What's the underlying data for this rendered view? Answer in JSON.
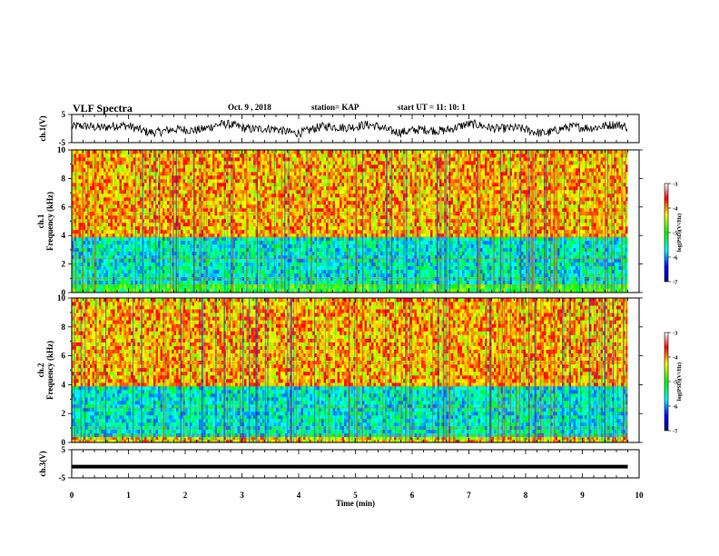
{
  "header": {
    "title": "VLF Spectra",
    "date": "Oct. 9 , 2018",
    "station": "station= KAP",
    "start": "start UT = 11: 10: 1"
  },
  "chart_data": [
    {
      "type": "line",
      "panel": "ch1-waveform",
      "ylabel": "ch.1(V)",
      "ylim": [
        -5,
        5
      ],
      "yticks": [
        "5",
        "-5"
      ],
      "xlim": [
        0,
        9.8
      ],
      "description_values": "noisy waveform fluctuating roughly between -4 and 4 V"
    },
    {
      "type": "heatmap",
      "panel": "ch1-spectrogram",
      "ylabel": "ch.1\nFrequency (kHz)",
      "ylabel_line1": "ch.1",
      "ylabel_line2": "Frequency (kHz)",
      "ylim": [
        0,
        10
      ],
      "yticks": [
        "0",
        "2",
        "4",
        "6",
        "8",
        "10"
      ],
      "xlim": [
        0,
        9.8
      ],
      "bands": [
        {
          "from": 0,
          "to": 0.6,
          "level": -5.0
        },
        {
          "from": 0.6,
          "to": 3.9,
          "level": -5.6
        },
        {
          "from": 3.9,
          "to": 10,
          "level": -4.1
        }
      ],
      "colorbar": {
        "label": "log(PSD)(V²/Hz)",
        "range": [
          -7,
          -3
        ],
        "ticks": [
          "-3",
          "-4",
          "-5",
          "-6",
          "-7"
        ]
      }
    },
    {
      "type": "heatmap",
      "panel": "ch2-spectrogram",
      "ylabel_line1": "ch.2",
      "ylabel_line2": "Frequency (kHz)",
      "ylim": [
        0,
        10
      ],
      "yticks": [
        "0",
        "2",
        "4",
        "6",
        "8",
        "10"
      ],
      "xlim": [
        0,
        9.8
      ],
      "bands": [
        {
          "from": 0,
          "to": 0.4,
          "level": -4.2
        },
        {
          "from": 0.4,
          "to": 3.9,
          "level": -5.6
        },
        {
          "from": 3.9,
          "to": 10,
          "level": -4.1
        }
      ],
      "colorbar": {
        "label": "log(PSD)(V²/Hz)",
        "range": [
          -7,
          -3
        ],
        "ticks": [
          "-3",
          "-4",
          "-5",
          "-6",
          "-7"
        ]
      }
    },
    {
      "type": "line",
      "panel": "ch3-waveform",
      "ylabel": "ch.3(V)",
      "ylim": [
        -5,
        5
      ],
      "yticks": [
        "5",
        "-5"
      ],
      "xlim": [
        0,
        9.8
      ],
      "constant_value": -1
    }
  ],
  "x_axis": {
    "label": "Time (min)",
    "ticks": [
      "0",
      "1",
      "2",
      "3",
      "4",
      "5",
      "6",
      "7",
      "8",
      "9",
      "10"
    ],
    "range": [
      0,
      10
    ]
  },
  "colormap": [
    "#000080",
    "#0000ff",
    "#00ffff",
    "#00ff00",
    "#ffff00",
    "#ff0000",
    "#ffffff"
  ]
}
